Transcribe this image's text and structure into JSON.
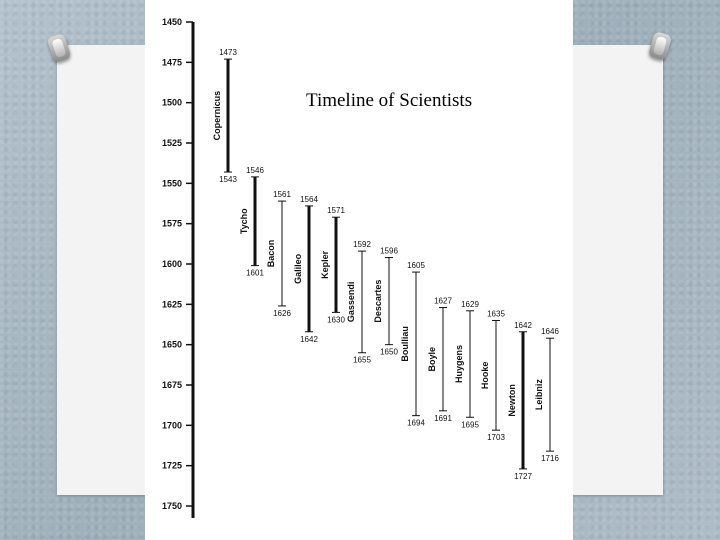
{
  "slide": {
    "title": "Timeline of Scientists"
  },
  "timeline": {
    "axis_ticks": [
      "1450",
      "1475",
      "1500",
      "1525",
      "1550",
      "1575",
      "1600",
      "1625",
      "1650",
      "1675",
      "1700",
      "1725",
      "1750"
    ],
    "scientists": [
      {
        "name": "Copernicus",
        "start": "1473",
        "end": "1543",
        "bold": true
      },
      {
        "name": "Tycho",
        "start": "1546",
        "end": "1601",
        "bold": true
      },
      {
        "name": "Bacon",
        "start": "1561",
        "end": "1626",
        "bold": false
      },
      {
        "name": "Galileo",
        "start": "1564",
        "end": "1642",
        "bold": true
      },
      {
        "name": "Kepler",
        "start": "1571",
        "end": "1630",
        "bold": true
      },
      {
        "name": "Gassendi",
        "start": "1592",
        "end": "1655",
        "bold": false
      },
      {
        "name": "Descartes",
        "start": "1596",
        "end": "1650",
        "bold": false
      },
      {
        "name": "Boulliau",
        "start": "1605",
        "end": "1694",
        "bold": false
      },
      {
        "name": "Boyle",
        "start": "1627",
        "end": "1691",
        "bold": false
      },
      {
        "name": "Huygens",
        "start": "1629",
        "end": "1695",
        "bold": false
      },
      {
        "name": "Hooke",
        "start": "1635",
        "end": "1703",
        "bold": false
      },
      {
        "name": "Newton",
        "start": "1642",
        "end": "1727",
        "bold": true
      },
      {
        "name": "Leibniz",
        "start": "1646",
        "end": "1716",
        "bold": false
      }
    ]
  }
}
